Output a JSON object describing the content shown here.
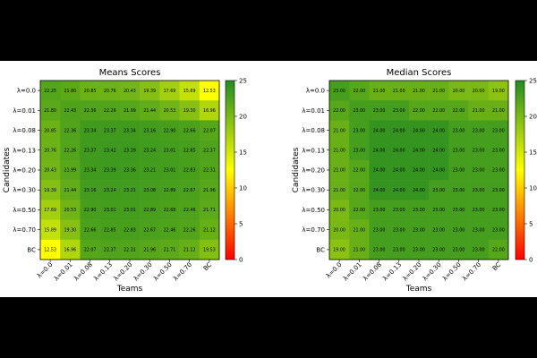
{
  "chart_data": [
    {
      "type": "heatmap",
      "title": "Means Scores",
      "xlabel": "Teams",
      "ylabel": "Candidates",
      "x": [
        "λ=0.0",
        "λ=0.01",
        "λ=0.08",
        "λ=0.13",
        "λ=0.20",
        "λ=0.30",
        "λ=0.50",
        "λ=0.70",
        "BC"
      ],
      "y": [
        "λ=0.0",
        "λ=0.01",
        "λ=0.08",
        "λ=0.13",
        "λ=0.20",
        "λ=0.30",
        "λ=0.50",
        "λ=0.70",
        "BC"
      ],
      "values": [
        [
          22.25,
          21.8,
          20.85,
          20.76,
          20.43,
          19.39,
          17.69,
          15.89,
          12.53
        ],
        [
          21.8,
          22.43,
          22.36,
          22.26,
          21.99,
          21.44,
          20.53,
          19.3,
          16.96
        ],
        [
          20.85,
          22.36,
          23.34,
          23.37,
          23.34,
          23.16,
          22.9,
          22.66,
          22.07
        ],
        [
          20.76,
          22.26,
          23.37,
          23.42,
          23.39,
          23.24,
          23.01,
          22.85,
          22.37
        ],
        [
          20.43,
          21.99,
          23.34,
          23.39,
          23.36,
          23.21,
          23.01,
          22.83,
          22.31
        ],
        [
          19.39,
          21.44,
          23.16,
          23.24,
          23.21,
          23.08,
          22.89,
          22.67,
          21.96
        ],
        [
          17.69,
          20.53,
          22.9,
          23.01,
          23.01,
          22.89,
          22.68,
          22.46,
          21.71
        ],
        [
          15.89,
          19.3,
          22.66,
          22.85,
          22.83,
          22.67,
          22.46,
          22.26,
          21.12
        ],
        [
          12.53,
          16.96,
          22.07,
          22.37,
          22.31,
          21.96,
          21.71,
          21.12,
          19.53
        ]
      ],
      "value_labels": [
        [
          "22.25",
          "21.80",
          "20.85",
          "20.76",
          "20.43",
          "19.39",
          "17.69",
          "15.89",
          "12.53"
        ],
        [
          "21.80",
          "22.43",
          "22.36",
          "22.26",
          "21.99",
          "21.44",
          "20.53",
          "19.30",
          "16.96"
        ],
        [
          "20.85",
          "22.36",
          "23.34",
          "23.37",
          "23.34",
          "23.16",
          "22.90",
          "22.66",
          "22.07"
        ],
        [
          "20.76",
          "22.26",
          "23.37",
          "23.42",
          "23.39",
          "23.24",
          "23.01",
          "22.85",
          "22.37"
        ],
        [
          "20.43",
          "21.99",
          "23.34",
          "23.39",
          "23.36",
          "23.21",
          "23.01",
          "22.83",
          "22.31"
        ],
        [
          "19.39",
          "21.44",
          "23.16",
          "23.24",
          "23.21",
          "23.08",
          "22.89",
          "22.67",
          "21.96"
        ],
        [
          "17.69",
          "20.53",
          "22.90",
          "23.01",
          "23.01",
          "22.89",
          "22.68",
          "22.46",
          "21.71"
        ],
        [
          "15.89",
          "19.30",
          "22.66",
          "22.85",
          "22.83",
          "22.67",
          "22.46",
          "22.26",
          "21.12"
        ],
        [
          "12.53",
          "16.96",
          "22.07",
          "22.37",
          "22.31",
          "21.96",
          "21.71",
          "21.12",
          "19.53"
        ]
      ],
      "colorbar": {
        "range": [
          0,
          25
        ],
        "ticks": [
          "0",
          "5",
          "10",
          "15",
          "20",
          "25"
        ]
      },
      "colormap": [
        "#ff0000",
        "#ffff00",
        "#228b22"
      ]
    },
    {
      "type": "heatmap",
      "title": "Median Scores",
      "xlabel": "Teams",
      "ylabel": "Candidates",
      "x": [
        "λ=0.0",
        "λ=0.01",
        "λ=0.08",
        "λ=0.13",
        "λ=0.20",
        "λ=0.30",
        "λ=0.50",
        "λ=0.70",
        "BC"
      ],
      "y": [
        "λ=0.0",
        "λ=0.01",
        "λ=0.08",
        "λ=0.13",
        "λ=0.20",
        "λ=0.30",
        "λ=0.50",
        "λ=0.70",
        "BC"
      ],
      "values": [
        [
          23.0,
          22.0,
          21.0,
          21.0,
          21.0,
          21.0,
          20.0,
          20.0,
          19.0
        ],
        [
          22.0,
          23.0,
          23.0,
          23.0,
          22.0,
          22.0,
          22.0,
          21.0,
          21.0
        ],
        [
          21.0,
          23.0,
          24.0,
          24.0,
          24.0,
          24.0,
          23.0,
          23.0,
          23.0
        ],
        [
          21.0,
          23.0,
          24.0,
          24.0,
          24.0,
          24.0,
          23.0,
          23.0,
          23.0
        ],
        [
          21.0,
          22.0,
          24.0,
          24.0,
          24.0,
          24.0,
          23.0,
          23.0,
          23.0
        ],
        [
          21.0,
          22.0,
          24.0,
          24.0,
          24.0,
          23.0,
          23.0,
          23.0,
          23.0
        ],
        [
          20.0,
          22.0,
          23.0,
          23.0,
          23.0,
          23.0,
          23.0,
          23.0,
          23.0
        ],
        [
          20.0,
          21.0,
          23.0,
          23.0,
          23.0,
          23.0,
          23.0,
          23.0,
          23.0
        ],
        [
          19.0,
          21.0,
          23.0,
          23.0,
          23.0,
          23.0,
          23.0,
          23.0,
          22.0
        ]
      ],
      "value_labels": [
        [
          "23.00",
          "22.00",
          "21.00",
          "21.00",
          "21.00",
          "21.00",
          "20.00",
          "20.00",
          "19.00"
        ],
        [
          "22.00",
          "23.00",
          "23.00",
          "23.00",
          "22.00",
          "22.00",
          "22.00",
          "21.00",
          "21.00"
        ],
        [
          "21.00",
          "23.00",
          "24.00",
          "24.00",
          "24.00",
          "24.00",
          "23.00",
          "23.00",
          "23.00"
        ],
        [
          "21.00",
          "23.00",
          "24.00",
          "24.00",
          "24.00",
          "24.00",
          "23.00",
          "23.00",
          "23.00"
        ],
        [
          "21.00",
          "22.00",
          "24.00",
          "24.00",
          "24.00",
          "24.00",
          "23.00",
          "23.00",
          "23.00"
        ],
        [
          "21.00",
          "22.00",
          "24.00",
          "24.00",
          "24.00",
          "23.00",
          "23.00",
          "23.00",
          "23.00"
        ],
        [
          "20.00",
          "22.00",
          "23.00",
          "23.00",
          "23.00",
          "23.00",
          "23.00",
          "23.00",
          "23.00"
        ],
        [
          "20.00",
          "21.00",
          "23.00",
          "23.00",
          "23.00",
          "23.00",
          "23.00",
          "23.00",
          "23.00"
        ],
        [
          "19.00",
          "21.00",
          "23.00",
          "23.00",
          "23.00",
          "23.00",
          "23.00",
          "23.00",
          "22.00"
        ]
      ],
      "colorbar": {
        "range": [
          0,
          25
        ],
        "ticks": [
          "0",
          "5",
          "10",
          "15",
          "20",
          "25"
        ]
      },
      "colormap": [
        "#ff0000",
        "#ffff00",
        "#228b22"
      ]
    }
  ]
}
